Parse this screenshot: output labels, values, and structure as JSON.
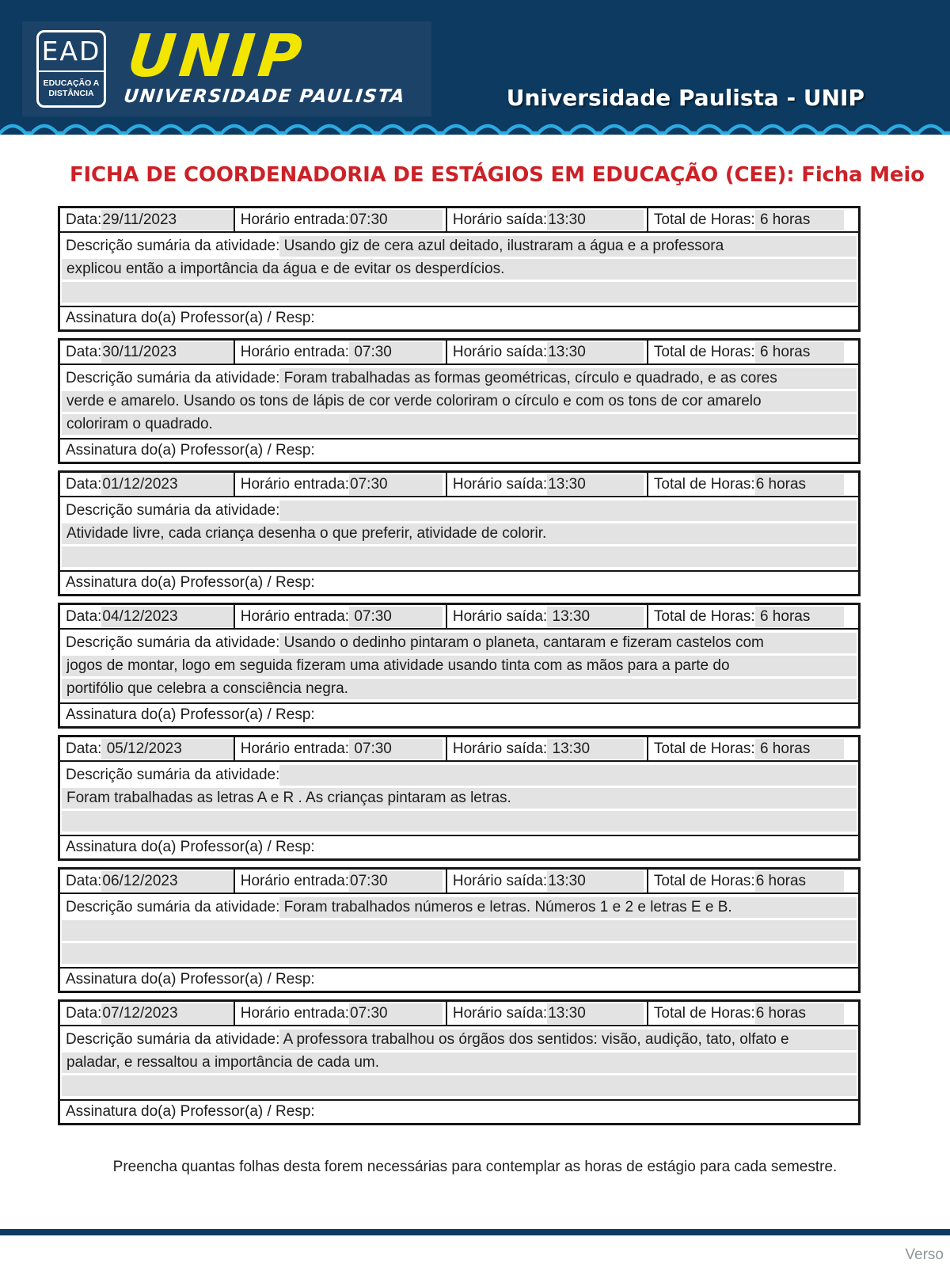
{
  "header": {
    "ead_logo": {
      "title": "EAD",
      "subtitle": "EDUCAÇÃO A DISTÂNCIA"
    },
    "unip_logo": {
      "title": "UNIP",
      "subtitle": "UNIVERSIDADE PAULISTA"
    },
    "right_text": "Universidade Paulista - UNIP"
  },
  "colors": {
    "header_navy": "#0D3A60",
    "logo_plate_navy": "#1D4267",
    "wave_blue": "#2BAAE2",
    "unip_yellow": "#F2E600",
    "title_red": "#CC2127",
    "highlight_gray": "#E3E3E3"
  },
  "title": "FICHA DE COORDENADORIA DE ESTÁGIOS EM EDUCAÇÃO (CEE): Ficha Meio",
  "labels": {
    "date": "Data:",
    "entry": "Horário entrada:",
    "exit": "Horário saída:",
    "total": "Total de Horas:",
    "description": "Descrição sumária da atividade:",
    "signature": "Assinatura do(a) Professor(a) / Resp:"
  },
  "entries": [
    {
      "date": "29/11/2023",
      "entry_time": "07:30",
      "exit_time": "13:30",
      "total_hours": " 6 horas",
      "description_lines": [
        {
          "has_label": true,
          "text": " Usando giz de cera azul deitado, ilustraram a água e a professora",
          "fill": true
        },
        {
          "has_label": false,
          "text": "explicou então a importância da água e de evitar os desperdícios.",
          "fill": true
        },
        {
          "has_label": false,
          "text": "",
          "fill": true
        }
      ]
    },
    {
      "date": "30/11/2023",
      "entry_time": " 07:30",
      "exit_time": "13:30",
      "total_hours": " 6 horas",
      "description_lines": [
        {
          "has_label": true,
          "text": " Foram trabalhadas as formas geométricas, círculo e quadrado, e as cores",
          "fill": true
        },
        {
          "has_label": false,
          "text": "verde e amarelo. Usando os tons de lápis de cor verde coloriram o círculo e com os tons de cor amarelo",
          "fill": true
        },
        {
          "has_label": false,
          "text": "coloriram o quadrado.",
          "fill": true
        }
      ]
    },
    {
      "date": "01/12/2023",
      "entry_time": "07:30",
      "exit_time": "13:30",
      "total_hours": "6 horas",
      "description_lines": [
        {
          "has_label": true,
          "text": "",
          "fill": true
        },
        {
          "has_label": false,
          "text": "Atividade livre, cada criança desenha o que preferir, atividade de colorir.",
          "fill": true
        },
        {
          "has_label": false,
          "text": "",
          "fill": true
        }
      ]
    },
    {
      "date": "04/12/2023",
      "entry_time": " 07:30",
      "exit_time": " 13:30",
      "total_hours": " 6 horas",
      "description_lines": [
        {
          "has_label": true,
          "text": " Usando o dedinho pintaram o planeta, cantaram e fizeram castelos com",
          "fill": true
        },
        {
          "has_label": false,
          "text": "jogos de montar, logo em seguida fizeram uma atividade usando tinta com as mãos para a parte do",
          "fill": true
        },
        {
          "has_label": false,
          "text": "portifólio que celebra a consciência negra.",
          "fill": true
        }
      ]
    },
    {
      "date": " 05/12/2023",
      "entry_time": " 07:30",
      "exit_time": " 13:30",
      "total_hours": " 6 horas",
      "description_lines": [
        {
          "has_label": true,
          "text": "",
          "fill": true
        },
        {
          "has_label": false,
          "text": "Foram trabalhadas as letras A e R . As crianças pintaram as letras.",
          "fill": true
        },
        {
          "has_label": false,
          "text": "",
          "fill": true
        }
      ]
    },
    {
      "date": "06/12/2023",
      "entry_time": "07:30",
      "exit_time": "13:30",
      "total_hours": "6 horas",
      "description_lines": [
        {
          "has_label": true,
          "text": " Foram trabalhados números e letras. Números 1 e 2 e letras E e B.",
          "fill": true
        },
        {
          "has_label": false,
          "text": "",
          "fill": true
        },
        {
          "has_label": false,
          "text": "",
          "fill": true
        }
      ]
    },
    {
      "date": "07/12/2023",
      "entry_time": "07:30",
      "exit_time": "13:30",
      "total_hours": "6 horas",
      "description_lines": [
        {
          "has_label": true,
          "text": " A professora trabalhou os órgãos dos sentidos: visão, audição, tato, olfato e",
          "fill": true
        },
        {
          "has_label": false,
          "text": "paladar, e ressaltou a importância de cada um.",
          "fill": true
        },
        {
          "has_label": false,
          "text": "",
          "fill": true
        }
      ]
    }
  ],
  "footer": {
    "note": "Preencha quantas folhas desta forem necessárias para contemplar as horas de estágio para cada semestre.",
    "page_label": "Verso"
  }
}
